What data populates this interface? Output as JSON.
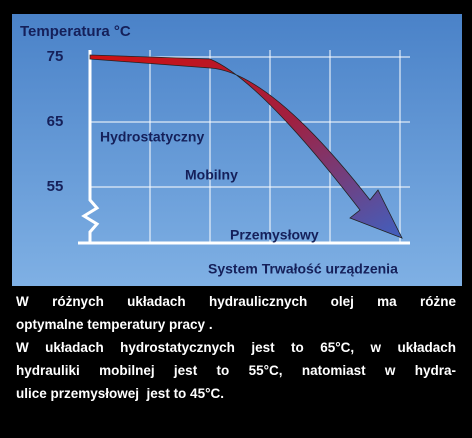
{
  "chart_data": {
    "type": "line",
    "title": "Temperatura °C",
    "ylim": [
      55,
      75
    ],
    "yticks": [
      75,
      65,
      55
    ],
    "grid": true,
    "annotations": [
      "Hydrostatyczny",
      "Mobilny",
      "Przemysłowy"
    ],
    "xlabel": "System Trwałość urządzenia"
  },
  "caption": [
    "W różnych układach hydraulicznych olej ma różne",
    "optymalne temperatury pracy .",
    "W układach hydrostatycznych jest to 65°C, w układach",
    "hydrauliki mobilnej jest to 55°C,  natomiast w hydra-",
    "ulice przemysłowej  jest to 45°C."
  ]
}
